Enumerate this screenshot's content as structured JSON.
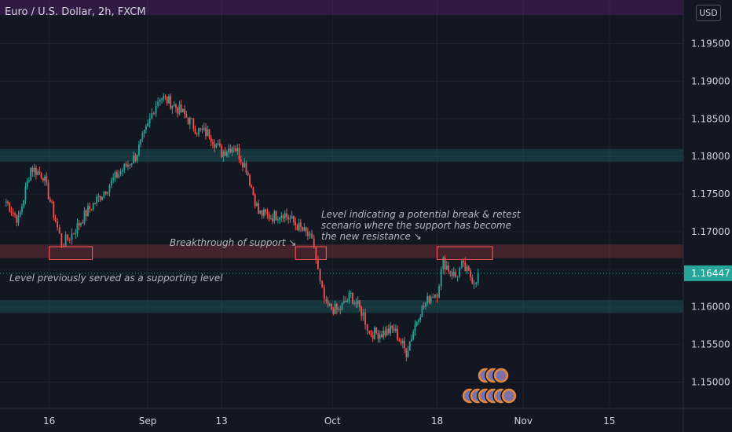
{
  "symbol_title": "Euro / U.S. Dollar, 2h, FXCM",
  "currency_label": "USD",
  "current_price_label": "1.16447",
  "colors": {
    "background": "#131722",
    "up": "#26a69a",
    "down": "#ef5350",
    "resistance_zone": "#ef5350",
    "support_zone": "#26a69a",
    "top_zone": "#9c27b0",
    "text": "#d1d4dc",
    "annotation": "#b2b5be"
  },
  "annotations": {
    "level_previous_support": "Level previously served as a supporting level",
    "breakthrough": "Breakthrough of support ↘",
    "retest_line1": "Level indicating a potential break & retest",
    "retest_line2": "scenario where the support has become",
    "retest_line3": "the new resistance ↘"
  },
  "chart_data": {
    "type": "candlestick",
    "title": "Euro / U.S. Dollar, 2h, FXCM",
    "y_ticks": [
      "1.19500",
      "1.19000",
      "1.18500",
      "1.18000",
      "1.17500",
      "1.17000",
      "1.16500",
      "1.16000",
      "1.15500",
      "1.15000"
    ],
    "y_tick_values": [
      1.195,
      1.19,
      1.185,
      1.18,
      1.175,
      1.17,
      1.165,
      1.16,
      1.155,
      1.15
    ],
    "ylim": [
      1.1465,
      1.2008
    ],
    "x_ticks": [
      "16",
      "Sep",
      "13",
      "Oct",
      "18",
      "Nov",
      "15"
    ],
    "x_tick_dates": [
      "2021-08-16",
      "2021-09-01",
      "2021-09-13",
      "2021-10-01",
      "2021-10-18",
      "2021-11-01",
      "2021-11-15"
    ],
    "xlim": [
      "2021-08-08",
      "2021-11-27"
    ],
    "last_price": 1.16447,
    "price_path": [
      [
        "2021-08-09",
        1.174,
        1.1755,
        1.1725
      ],
      [
        "2021-08-11",
        1.1715,
        1.173,
        1.1705
      ],
      [
        "2021-08-13",
        1.1785,
        1.18,
        1.1775
      ],
      [
        "2021-08-15",
        1.1775,
        1.179,
        1.176
      ],
      [
        "2021-08-17",
        1.1715,
        1.173,
        1.17
      ],
      [
        "2021-08-18",
        1.1685,
        1.17,
        1.1673
      ],
      [
        "2021-08-19",
        1.169,
        1.1705,
        1.1675
      ],
      [
        "2021-08-20",
        1.17,
        1.1715,
        1.168
      ],
      [
        "2021-08-22",
        1.1725,
        1.174,
        1.171
      ],
      [
        "2021-08-24",
        1.1745,
        1.176,
        1.173
      ],
      [
        "2021-08-27",
        1.1775,
        1.1795,
        1.176
      ],
      [
        "2021-08-30",
        1.18,
        1.1815,
        1.1785
      ],
      [
        "2021-09-01",
        1.184,
        1.1855,
        1.1825
      ],
      [
        "2021-09-02",
        1.1865,
        1.188,
        1.185
      ],
      [
        "2021-09-03",
        1.188,
        1.1909,
        1.1865
      ],
      [
        "2021-09-05",
        1.187,
        1.189,
        1.1855
      ],
      [
        "2021-09-07",
        1.1855,
        1.187,
        1.1835
      ],
      [
        "2021-09-09",
        1.1835,
        1.185,
        1.182
      ],
      [
        "2021-09-11",
        1.183,
        1.1845,
        1.1815
      ],
      [
        "2021-09-13",
        1.1805,
        1.182,
        1.179
      ],
      [
        "2021-09-15",
        1.1815,
        1.1835,
        1.18
      ],
      [
        "2021-09-17",
        1.1785,
        1.18,
        1.177
      ],
      [
        "2021-09-19",
        1.1725,
        1.174,
        1.171
      ],
      [
        "2021-09-21",
        1.172,
        1.174,
        1.1705
      ],
      [
        "2021-09-23",
        1.1725,
        1.1753,
        1.171
      ],
      [
        "2021-09-25",
        1.171,
        1.1725,
        1.1695
      ],
      [
        "2021-09-27",
        1.1695,
        1.171,
        1.168
      ],
      [
        "2021-09-28",
        1.168,
        1.1695,
        1.167
      ],
      [
        "2021-09-29",
        1.163,
        1.166,
        1.161
      ],
      [
        "2021-09-30",
        1.16,
        1.162,
        1.1585
      ],
      [
        "2021-10-02",
        1.1595,
        1.1615,
        1.1575
      ],
      [
        "2021-10-04",
        1.1615,
        1.1635,
        1.16
      ],
      [
        "2021-10-06",
        1.159,
        1.161,
        1.157
      ],
      [
        "2021-10-07",
        1.1565,
        1.1585,
        1.153
      ],
      [
        "2021-10-09",
        1.1565,
        1.158,
        1.155
      ],
      [
        "2021-10-11",
        1.157,
        1.159,
        1.1555
      ],
      [
        "2021-10-13",
        1.154,
        1.156,
        1.1525
      ],
      [
        "2021-10-15",
        1.159,
        1.161,
        1.1575
      ],
      [
        "2021-10-17",
        1.1615,
        1.163,
        1.16
      ],
      [
        "2021-10-18",
        1.162,
        1.164,
        1.1605
      ],
      [
        "2021-10-19",
        1.166,
        1.1672,
        1.1645
      ],
      [
        "2021-10-21",
        1.164,
        1.166,
        1.1625
      ],
      [
        "2021-10-22",
        1.1655,
        1.1668,
        1.164
      ],
      [
        "2021-10-24",
        1.1635,
        1.165,
        1.162
      ],
      [
        "2021-10-25",
        1.1645,
        1.166,
        1.163
      ]
    ],
    "zones": [
      {
        "type": "resistance",
        "from": 1.1683,
        "to": 1.1665
      },
      {
        "type": "support",
        "from": 1.181,
        "to": 1.1793
      },
      {
        "type": "support",
        "from": 1.1609,
        "to": 1.1592
      },
      {
        "type": "top",
        "from": 1.2008,
        "to": 1.1988
      }
    ],
    "marked_boxes": [
      {
        "from_date": "2021-08-16",
        "to_date": "2021-08-23",
        "top": 1.168,
        "bottom": 1.1663
      },
      {
        "from_date": "2021-09-25",
        "to_date": "2021-09-30",
        "top": 1.168,
        "bottom": 1.1663
      },
      {
        "from_date": "2021-10-18",
        "to_date": "2021-10-27",
        "top": 1.168,
        "bottom": 1.1663
      }
    ],
    "grid": true,
    "series": [
      {
        "values": []
      }
    ]
  }
}
